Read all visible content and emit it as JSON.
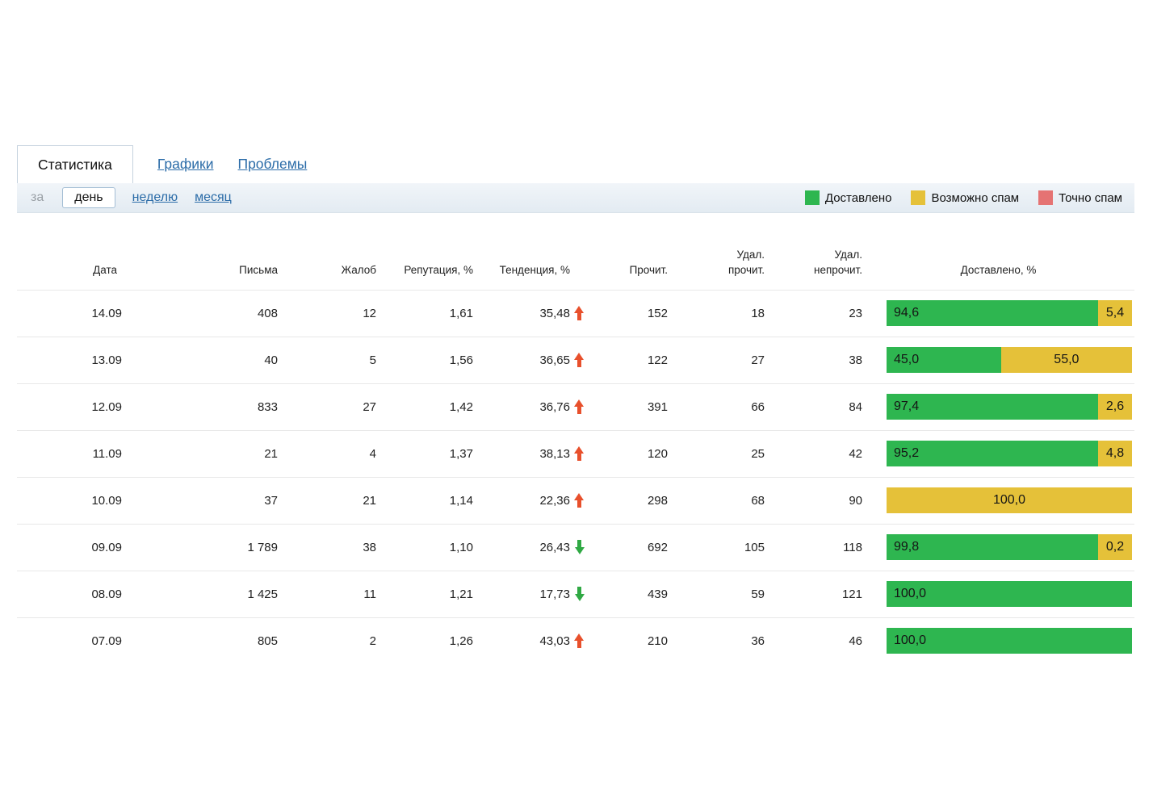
{
  "tabs": [
    {
      "label": "Статистика",
      "active": true
    },
    {
      "label": "Графики",
      "active": false
    },
    {
      "label": "Проблемы",
      "active": false
    }
  ],
  "period": {
    "prefix": "за",
    "options": [
      {
        "label": "день",
        "active": true
      },
      {
        "label": "неделю",
        "active": false
      },
      {
        "label": "месяц",
        "active": false
      }
    ]
  },
  "legend": [
    {
      "label": "Доставлено",
      "color": "#2eb650"
    },
    {
      "label": "Возможно спам",
      "color": "#e5c139"
    },
    {
      "label": "Точно спам",
      "color": "#e57373"
    }
  ],
  "colors": {
    "delivered": "#2eb650",
    "maybe_spam": "#e5c139",
    "sure_spam": "#e57373",
    "trend_up": "#e8502c",
    "trend_down": "#30a944"
  },
  "table": {
    "columns": [
      "Дата",
      "Письма",
      "Жалоб",
      "Репутация, %",
      "Тенденция, %",
      "Прочит.",
      "Удал.\nпрочит.",
      "Удал.\nнепрочит.",
      "Доставлено, %"
    ],
    "rows": [
      {
        "date": "14.09",
        "letters": "408",
        "complaints": "12",
        "reputation": "1,61",
        "trend": "35,48",
        "trend_dir": "up",
        "read": "152",
        "deleted_read": "18",
        "deleted_unread": "23",
        "delivered_segments": [
          {
            "type": "delivered",
            "label": "94,6",
            "pct": 94.6
          },
          {
            "type": "maybe-spam",
            "label": "5,4",
            "pct": 5.4
          }
        ]
      },
      {
        "date": "13.09",
        "letters": "40",
        "complaints": "5",
        "reputation": "1,56",
        "trend": "36,65",
        "trend_dir": "up",
        "read": "122",
        "deleted_read": "27",
        "deleted_unread": "38",
        "delivered_segments": [
          {
            "type": "delivered",
            "label": "45,0",
            "pct": 45.0
          },
          {
            "type": "maybe-spam",
            "label": "55,0",
            "pct": 55.0
          }
        ]
      },
      {
        "date": "12.09",
        "letters": "833",
        "complaints": "27",
        "reputation": "1,42",
        "trend": "36,76",
        "trend_dir": "up",
        "read": "391",
        "deleted_read": "66",
        "deleted_unread": "84",
        "delivered_segments": [
          {
            "type": "delivered",
            "label": "97,4",
            "pct": 97.4
          },
          {
            "type": "maybe-spam",
            "label": "2,6",
            "pct": 2.6
          }
        ]
      },
      {
        "date": "11.09",
        "letters": "21",
        "complaints": "4",
        "reputation": "1,37",
        "trend": "38,13",
        "trend_dir": "up",
        "read": "120",
        "deleted_read": "25",
        "deleted_unread": "42",
        "delivered_segments": [
          {
            "type": "delivered",
            "label": "95,2",
            "pct": 95.2
          },
          {
            "type": "maybe-spam",
            "label": "4,8",
            "pct": 4.8
          }
        ]
      },
      {
        "date": "10.09",
        "letters": "37",
        "complaints": "21",
        "reputation": "1,14",
        "trend": "22,36",
        "trend_dir": "up",
        "read": "298",
        "deleted_read": "68",
        "deleted_unread": "90",
        "delivered_segments": [
          {
            "type": "maybe-spam",
            "label": "100,0",
            "pct": 100.0
          }
        ]
      },
      {
        "date": "09.09",
        "letters": "1 789",
        "complaints": "38",
        "reputation": "1,10",
        "trend": "26,43",
        "trend_dir": "down",
        "read": "692",
        "deleted_read": "105",
        "deleted_unread": "118",
        "delivered_segments": [
          {
            "type": "delivered",
            "label": "99,8",
            "pct": 99.8
          },
          {
            "type": "maybe-spam",
            "label": "0,2",
            "pct": 0.2
          }
        ]
      },
      {
        "date": "08.09",
        "letters": "1 425",
        "complaints": "11",
        "reputation": "1,21",
        "trend": "17,73",
        "trend_dir": "down",
        "read": "439",
        "deleted_read": "59",
        "deleted_unread": "121",
        "delivered_segments": [
          {
            "type": "delivered",
            "label": "100,0",
            "pct": 100.0
          }
        ]
      },
      {
        "date": "07.09",
        "letters": "805",
        "complaints": "2",
        "reputation": "1,26",
        "trend": "43,03",
        "trend_dir": "up",
        "read": "210",
        "deleted_read": "36",
        "deleted_unread": "46",
        "delivered_segments": [
          {
            "type": "delivered",
            "label": "100,0",
            "pct": 100.0
          }
        ]
      }
    ]
  }
}
